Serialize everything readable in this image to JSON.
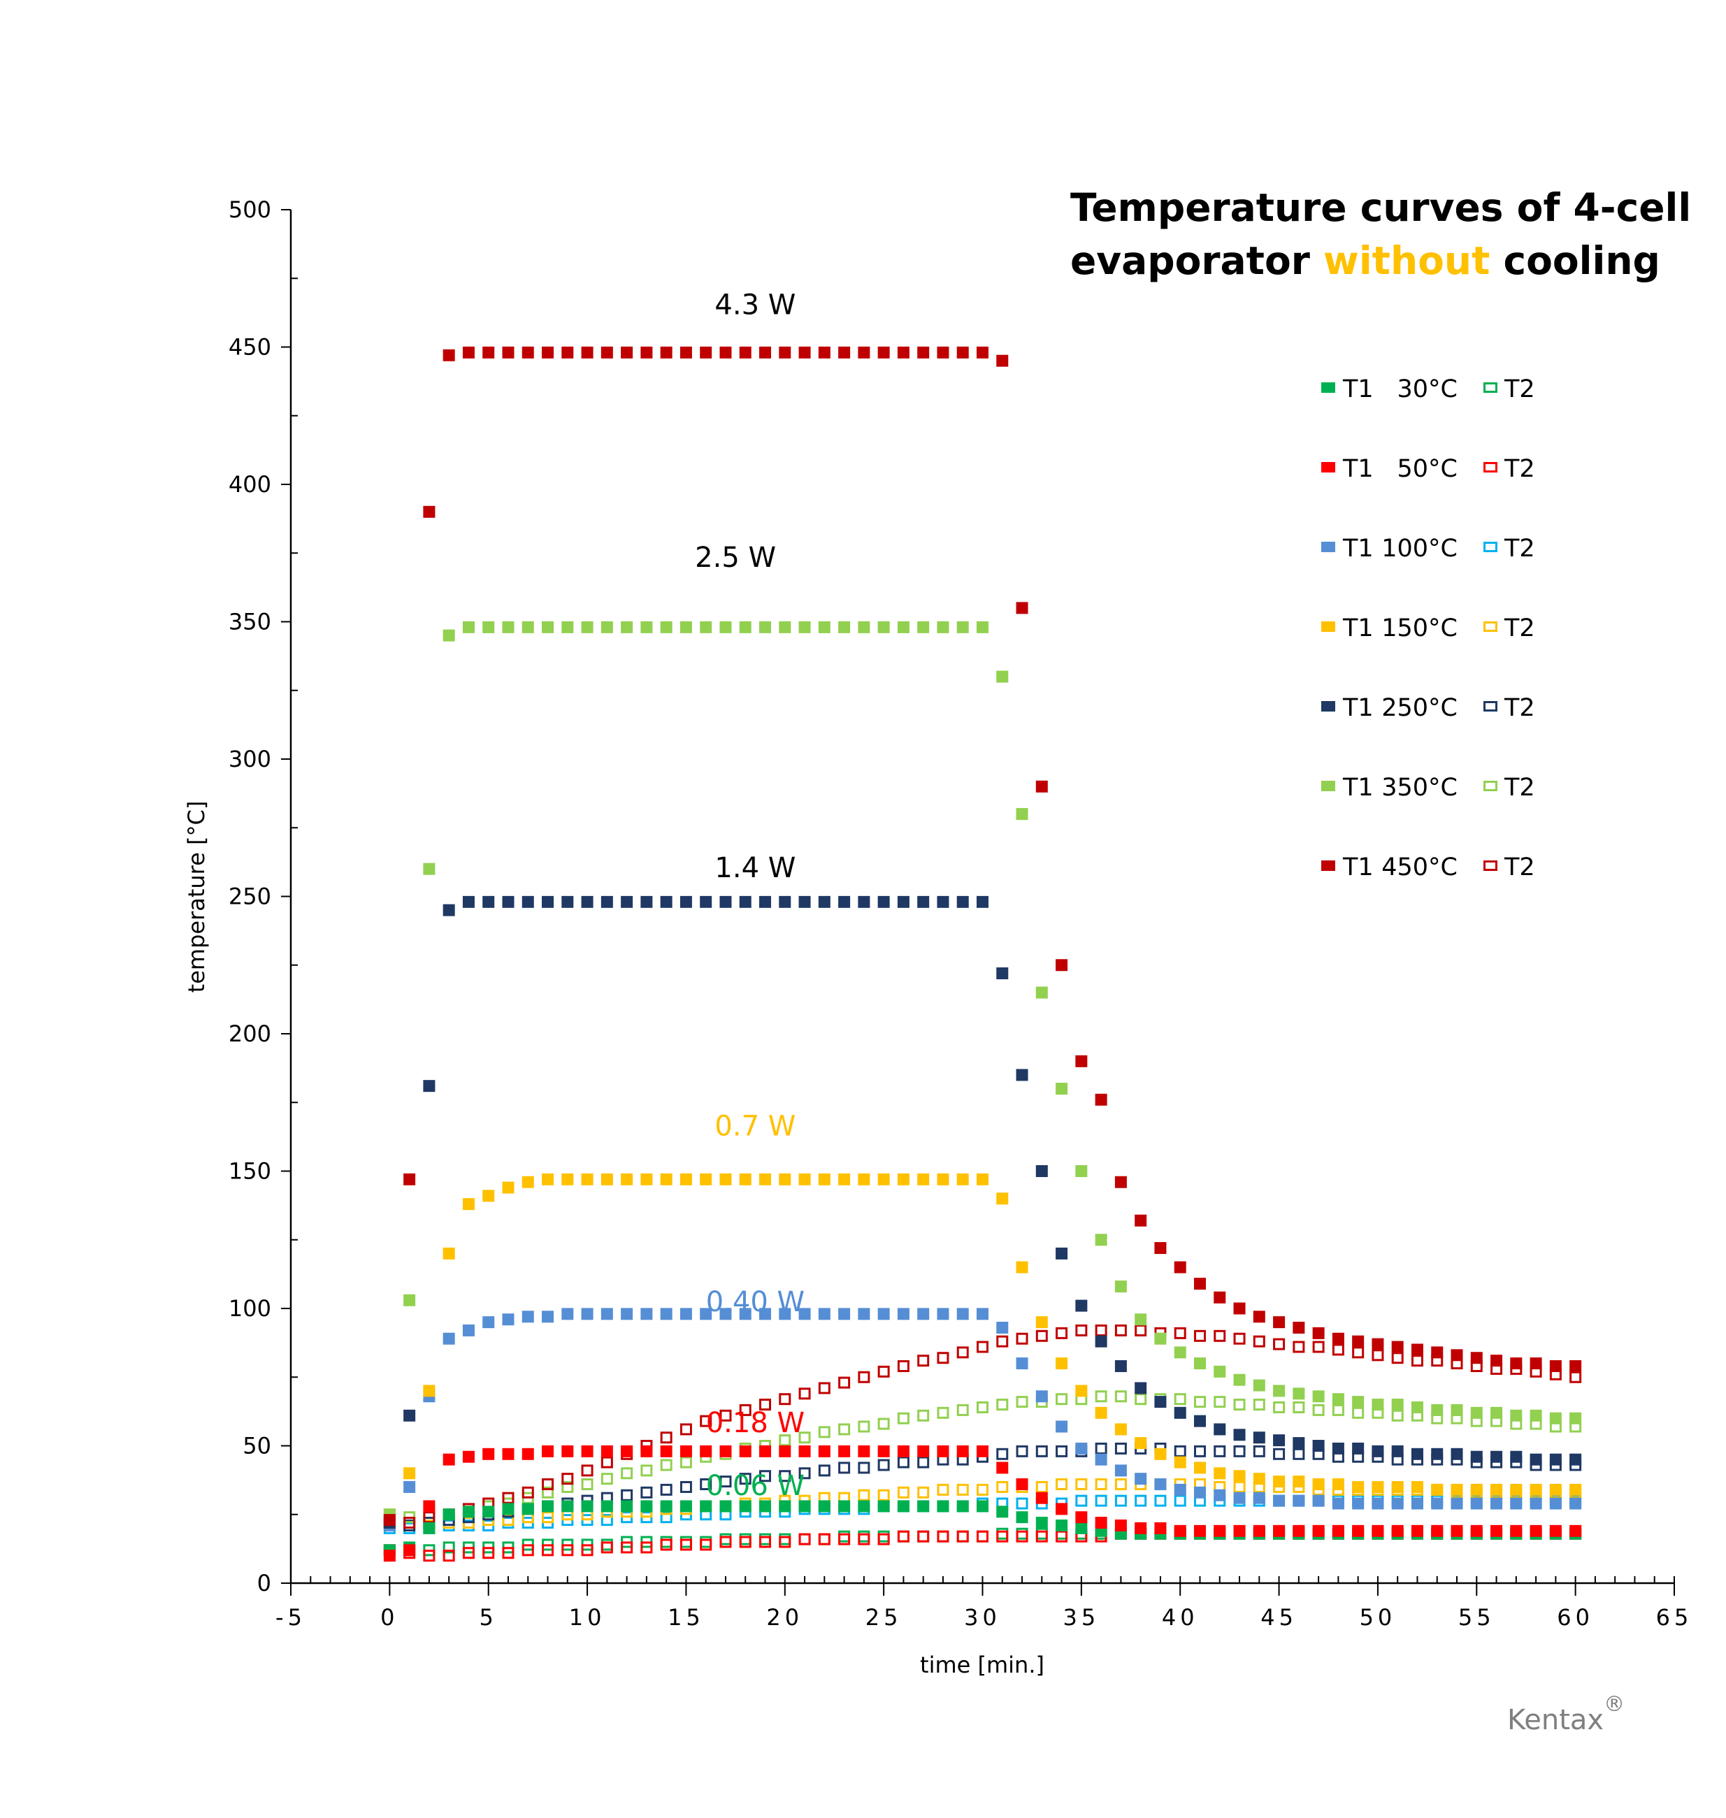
{
  "chart_data": {
    "type": "scatter",
    "title_parts": [
      "Temperature curves of 4-cell",
      "evaporator ",
      "without",
      " cooling"
    ],
    "title_highlight_color": "#FFC000",
    "xlabel": "time [min.]",
    "ylabel": "temperature [°C]",
    "xlim": [
      -5,
      65
    ],
    "ylim": [
      0,
      500
    ],
    "x_ticks": [
      "-5",
      "0",
      "5",
      "10",
      "15",
      "20",
      "25",
      "30",
      "35",
      "40",
      "45",
      "50",
      "55",
      "60",
      "65"
    ],
    "y_ticks": [
      "0",
      "50",
      "100",
      "150",
      "200",
      "250",
      "300",
      "350",
      "400",
      "450",
      "500"
    ],
    "grid": false,
    "legend_position": "right",
    "x": [
      0,
      1,
      2,
      3,
      4,
      5,
      6,
      7,
      8,
      9,
      10,
      11,
      12,
      13,
      14,
      15,
      16,
      17,
      18,
      19,
      20,
      21,
      22,
      23,
      24,
      25,
      26,
      27,
      28,
      29,
      30,
      31,
      32,
      33,
      34,
      35,
      36,
      37,
      38,
      39,
      40,
      41,
      42,
      43,
      44,
      45,
      46,
      47,
      48,
      49,
      50,
      51,
      52,
      53,
      54,
      55,
      56,
      57,
      58,
      59,
      60
    ],
    "series": [
      {
        "setpoint": "30°C",
        "t1_label": "T1",
        "t2_label": "T2",
        "color": "#00B050",
        "t2_color": "#00B050",
        "T1": [
          12,
          13,
          20,
          25,
          26,
          26,
          27,
          27,
          28,
          28,
          28,
          28,
          28,
          28,
          28,
          28,
          28,
          28,
          28,
          28,
          28,
          28,
          28,
          28,
          28,
          28,
          28,
          28,
          28,
          28,
          28,
          26,
          24,
          22,
          21,
          20,
          19,
          18,
          18,
          18,
          18,
          18,
          18,
          18,
          18,
          18,
          18,
          18,
          18,
          18,
          18,
          18,
          18,
          18,
          18,
          18,
          18,
          18,
          18,
          18,
          18
        ],
        "T2": [
          12,
          12,
          12,
          13,
          13,
          13,
          13,
          14,
          14,
          14,
          14,
          14,
          15,
          15,
          15,
          15,
          15,
          16,
          16,
          16,
          16,
          16,
          16,
          17,
          17,
          17,
          17,
          17,
          17,
          17,
          17,
          18,
          18,
          18,
          18,
          18,
          18,
          18,
          18,
          18,
          18,
          18,
          18,
          18,
          18,
          18,
          18,
          18,
          18,
          18,
          18,
          18,
          18,
          18,
          18,
          18,
          18,
          18,
          18,
          18,
          18
        ]
      },
      {
        "setpoint": "50°C",
        "t1_label": "T1",
        "t2_label": "T2",
        "color": "#FF0000",
        "t2_color": "#FF0000",
        "T1": [
          10,
          12,
          28,
          45,
          46,
          47,
          47,
          47,
          48,
          48,
          48,
          48,
          48,
          48,
          48,
          48,
          48,
          48,
          48,
          48,
          48,
          48,
          48,
          48,
          48,
          48,
          48,
          48,
          48,
          48,
          48,
          42,
          36,
          31,
          27,
          24,
          22,
          21,
          20,
          20,
          19,
          19,
          19,
          19,
          19,
          19,
          19,
          19,
          19,
          19,
          19,
          19,
          19,
          19,
          19,
          19,
          19,
          19,
          19,
          19,
          19
        ],
        "T2": [
          12,
          11,
          10,
          10,
          11,
          11,
          11,
          12,
          12,
          12,
          12,
          13,
          13,
          13,
          14,
          14,
          14,
          15,
          15,
          15,
          15,
          16,
          16,
          16,
          16,
          16,
          17,
          17,
          17,
          17,
          17,
          17,
          17,
          17,
          17,
          17,
          17,
          18,
          18,
          18,
          18,
          18,
          18,
          18,
          18,
          18,
          18,
          18,
          18,
          18,
          18,
          18,
          18,
          18,
          18,
          18,
          18,
          18,
          18,
          18,
          18
        ]
      },
      {
        "setpoint": "100°C",
        "t1_label": "T1",
        "t2_label": "T2",
        "color": "#558ED5",
        "t2_color": "#00B0F0",
        "T1": [
          21,
          35,
          68,
          89,
          92,
          95,
          96,
          97,
          97,
          98,
          98,
          98,
          98,
          98,
          98,
          98,
          98,
          98,
          98,
          98,
          98,
          98,
          98,
          98,
          98,
          98,
          98,
          98,
          98,
          98,
          98,
          93,
          80,
          68,
          57,
          49,
          45,
          41,
          38,
          36,
          34,
          33,
          32,
          31,
          31,
          30,
          30,
          30,
          29,
          29,
          29,
          29,
          29,
          29,
          29,
          29,
          29,
          29,
          29,
          29,
          29
        ],
        "T2": [
          20,
          20,
          20,
          21,
          21,
          21,
          22,
          22,
          22,
          23,
          23,
          23,
          24,
          24,
          24,
          25,
          25,
          25,
          26,
          26,
          26,
          27,
          27,
          27,
          27,
          28,
          28,
          28,
          28,
          28,
          29,
          29,
          29,
          29,
          29,
          30,
          30,
          30,
          30,
          30,
          30,
          30,
          30,
          30,
          30,
          30,
          30,
          30,
          30,
          30,
          30,
          30,
          30,
          30,
          30,
          30,
          30,
          30,
          30,
          30,
          30
        ]
      },
      {
        "setpoint": "150°C",
        "t1_label": "T1",
        "t2_label": "T2",
        "color": "#FFC000",
        "t2_color": "#FFC000",
        "T1": [
          22,
          40,
          70,
          120,
          138,
          141,
          144,
          146,
          147,
          147,
          147,
          147,
          147,
          147,
          147,
          147,
          147,
          147,
          147,
          147,
          147,
          147,
          147,
          147,
          147,
          147,
          147,
          147,
          147,
          147,
          147,
          140,
          115,
          95,
          80,
          70,
          62,
          56,
          51,
          47,
          44,
          42,
          40,
          39,
          38,
          37,
          37,
          36,
          36,
          35,
          35,
          35,
          35,
          34,
          34,
          34,
          34,
          34,
          34,
          34,
          34
        ],
        "T2": [
          22,
          21,
          21,
          22,
          22,
          23,
          23,
          24,
          24,
          25,
          25,
          26,
          26,
          26,
          27,
          27,
          28,
          28,
          29,
          29,
          30,
          30,
          31,
          31,
          32,
          32,
          33,
          33,
          34,
          34,
          34,
          35,
          35,
          35,
          36,
          36,
          36,
          36,
          36,
          36,
          36,
          36,
          35,
          35,
          35,
          35,
          35,
          34,
          34,
          34,
          34,
          34,
          34,
          34,
          33,
          33,
          33,
          33,
          33,
          33,
          33
        ]
      },
      {
        "setpoint": "250°C",
        "t1_label": "T1",
        "t2_label": "T2",
        "color": "#1F3864",
        "t2_color": "#1F3864",
        "T1": [
          22,
          61,
          181,
          245,
          248,
          248,
          248,
          248,
          248,
          248,
          248,
          248,
          248,
          248,
          248,
          248,
          248,
          248,
          248,
          248,
          248,
          248,
          248,
          248,
          248,
          248,
          248,
          248,
          248,
          248,
          248,
          222,
          185,
          150,
          120,
          101,
          88,
          79,
          71,
          66,
          62,
          59,
          56,
          54,
          53,
          52,
          51,
          50,
          49,
          49,
          48,
          48,
          47,
          47,
          47,
          46,
          46,
          46,
          45,
          45,
          45
        ],
        "T2": [
          22,
          21,
          22,
          23,
          24,
          25,
          26,
          27,
          28,
          29,
          30,
          31,
          32,
          33,
          34,
          35,
          36,
          37,
          38,
          39,
          39,
          40,
          41,
          42,
          42,
          43,
          44,
          44,
          45,
          45,
          46,
          47,
          48,
          48,
          48,
          48,
          49,
          49,
          49,
          49,
          48,
          48,
          48,
          48,
          48,
          47,
          47,
          47,
          46,
          46,
          46,
          45,
          45,
          45,
          45,
          44,
          44,
          44,
          43,
          43,
          43
        ]
      },
      {
        "setpoint": "350°C",
        "t1_label": "T1",
        "t2_label": "T2",
        "color": "#92D050",
        "t2_color": "#92D050",
        "T1": [
          25,
          103,
          260,
          345,
          348,
          348,
          348,
          348,
          348,
          348,
          348,
          348,
          348,
          348,
          348,
          348,
          348,
          348,
          348,
          348,
          348,
          348,
          348,
          348,
          348,
          348,
          348,
          348,
          348,
          348,
          348,
          330,
          280,
          215,
          180,
          150,
          125,
          108,
          96,
          89,
          84,
          80,
          77,
          74,
          72,
          70,
          69,
          68,
          67,
          66,
          65,
          65,
          64,
          63,
          63,
          62,
          62,
          61,
          61,
          60,
          60
        ],
        "T2": [
          25,
          24,
          24,
          25,
          26,
          28,
          29,
          31,
          33,
          35,
          36,
          38,
          40,
          41,
          43,
          44,
          46,
          47,
          49,
          50,
          52,
          53,
          55,
          56,
          57,
          58,
          60,
          61,
          62,
          63,
          64,
          65,
          66,
          66,
          67,
          67,
          68,
          68,
          67,
          67,
          67,
          66,
          66,
          65,
          65,
          64,
          64,
          63,
          63,
          62,
          62,
          61,
          61,
          60,
          60,
          59,
          59,
          58,
          58,
          57,
          57
        ]
      },
      {
        "setpoint": "450°C",
        "t1_label": "T1",
        "t2_label": "T2",
        "color": "#C00000",
        "t2_color": "#C00000",
        "T1": [
          23,
          147,
          390,
          447,
          448,
          448,
          448,
          448,
          448,
          448,
          448,
          448,
          448,
          448,
          448,
          448,
          448,
          448,
          448,
          448,
          448,
          448,
          448,
          448,
          448,
          448,
          448,
          448,
          448,
          448,
          448,
          445,
          355,
          290,
          225,
          190,
          176,
          146,
          132,
          122,
          115,
          109,
          104,
          100,
          97,
          95,
          93,
          91,
          89,
          88,
          87,
          86,
          85,
          84,
          83,
          82,
          81,
          80,
          80,
          79,
          79
        ],
        "T2": [
          23,
          22,
          24,
          25,
          27,
          29,
          31,
          33,
          36,
          38,
          41,
          44,
          47,
          50,
          53,
          56,
          59,
          61,
          63,
          65,
          67,
          69,
          71,
          73,
          75,
          77,
          79,
          81,
          82,
          84,
          86,
          88,
          89,
          90,
          91,
          92,
          92,
          92,
          92,
          91,
          91,
          90,
          90,
          89,
          88,
          87,
          86,
          86,
          85,
          84,
          83,
          82,
          81,
          81,
          80,
          79,
          78,
          78,
          77,
          76,
          75
        ]
      }
    ],
    "annotations": [
      {
        "text": "4.3 W",
        "x": 18.5,
        "y": 462,
        "color": "#000000"
      },
      {
        "text": "2.5 W",
        "x": 17.5,
        "y": 370,
        "color": "#000000"
      },
      {
        "text": "1.4 W",
        "x": 18.5,
        "y": 257,
        "color": "#000000"
      },
      {
        "text": "0.7 W",
        "x": 18.5,
        "y": 163,
        "color": "#FFC000"
      },
      {
        "text": "0.40 W",
        "x": 18.5,
        "y": 99,
        "color": "#558ED5"
      },
      {
        "text": "0.18 W",
        "x": 18.5,
        "y": 55,
        "color": "#FF0000"
      },
      {
        "text": "0.06 W",
        "x": 18.5,
        "y": 32,
        "color": "#00B050"
      }
    ]
  },
  "brand": {
    "name": "Kentax",
    "mark": "®"
  }
}
